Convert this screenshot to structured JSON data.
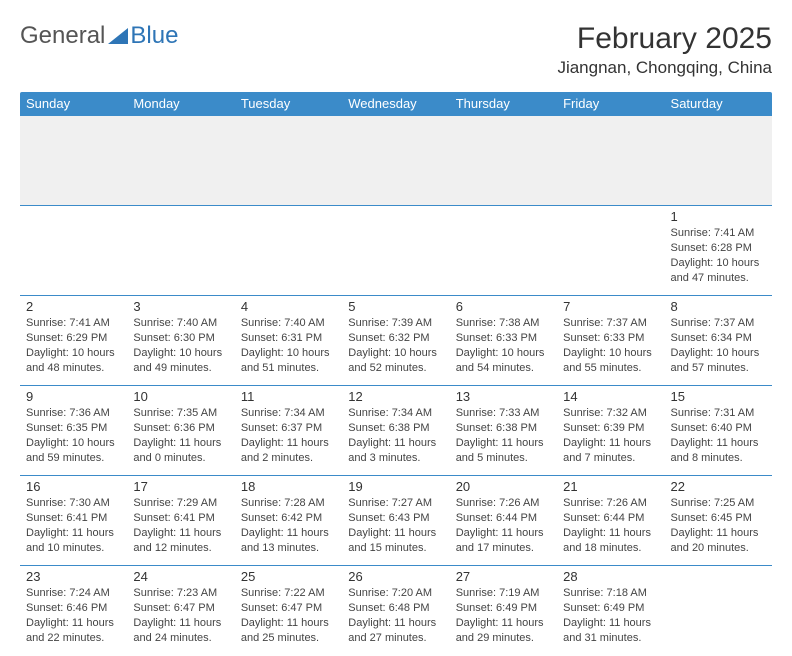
{
  "brand": {
    "general": "General",
    "blue": "Blue"
  },
  "title": "February 2025",
  "location": "Jiangnan, Chongqing, China",
  "colors": {
    "header_bg": "#3b8bc9",
    "header_text": "#ffffff",
    "rule": "#3b8bc9",
    "spacer_bg": "#f0f0f0",
    "text": "#444444",
    "title_text": "#333333",
    "brand_gray": "#555555",
    "brand_blue": "#2e75b6",
    "page_bg": "#ffffff"
  },
  "day_names": [
    "Sunday",
    "Monday",
    "Tuesday",
    "Wednesday",
    "Thursday",
    "Friday",
    "Saturday"
  ],
  "weeks": [
    [
      null,
      null,
      null,
      null,
      null,
      null,
      {
        "n": "1",
        "sunrise": "7:41 AM",
        "sunset": "6:28 PM",
        "daylight": "10 hours and 47 minutes."
      }
    ],
    [
      {
        "n": "2",
        "sunrise": "7:41 AM",
        "sunset": "6:29 PM",
        "daylight": "10 hours and 48 minutes."
      },
      {
        "n": "3",
        "sunrise": "7:40 AM",
        "sunset": "6:30 PM",
        "daylight": "10 hours and 49 minutes."
      },
      {
        "n": "4",
        "sunrise": "7:40 AM",
        "sunset": "6:31 PM",
        "daylight": "10 hours and 51 minutes."
      },
      {
        "n": "5",
        "sunrise": "7:39 AM",
        "sunset": "6:32 PM",
        "daylight": "10 hours and 52 minutes."
      },
      {
        "n": "6",
        "sunrise": "7:38 AM",
        "sunset": "6:33 PM",
        "daylight": "10 hours and 54 minutes."
      },
      {
        "n": "7",
        "sunrise": "7:37 AM",
        "sunset": "6:33 PM",
        "daylight": "10 hours and 55 minutes."
      },
      {
        "n": "8",
        "sunrise": "7:37 AM",
        "sunset": "6:34 PM",
        "daylight": "10 hours and 57 minutes."
      }
    ],
    [
      {
        "n": "9",
        "sunrise": "7:36 AM",
        "sunset": "6:35 PM",
        "daylight": "10 hours and 59 minutes."
      },
      {
        "n": "10",
        "sunrise": "7:35 AM",
        "sunset": "6:36 PM",
        "daylight": "11 hours and 0 minutes."
      },
      {
        "n": "11",
        "sunrise": "7:34 AM",
        "sunset": "6:37 PM",
        "daylight": "11 hours and 2 minutes."
      },
      {
        "n": "12",
        "sunrise": "7:34 AM",
        "sunset": "6:38 PM",
        "daylight": "11 hours and 3 minutes."
      },
      {
        "n": "13",
        "sunrise": "7:33 AM",
        "sunset": "6:38 PM",
        "daylight": "11 hours and 5 minutes."
      },
      {
        "n": "14",
        "sunrise": "7:32 AM",
        "sunset": "6:39 PM",
        "daylight": "11 hours and 7 minutes."
      },
      {
        "n": "15",
        "sunrise": "7:31 AM",
        "sunset": "6:40 PM",
        "daylight": "11 hours and 8 minutes."
      }
    ],
    [
      {
        "n": "16",
        "sunrise": "7:30 AM",
        "sunset": "6:41 PM",
        "daylight": "11 hours and 10 minutes."
      },
      {
        "n": "17",
        "sunrise": "7:29 AM",
        "sunset": "6:41 PM",
        "daylight": "11 hours and 12 minutes."
      },
      {
        "n": "18",
        "sunrise": "7:28 AM",
        "sunset": "6:42 PM",
        "daylight": "11 hours and 13 minutes."
      },
      {
        "n": "19",
        "sunrise": "7:27 AM",
        "sunset": "6:43 PM",
        "daylight": "11 hours and 15 minutes."
      },
      {
        "n": "20",
        "sunrise": "7:26 AM",
        "sunset": "6:44 PM",
        "daylight": "11 hours and 17 minutes."
      },
      {
        "n": "21",
        "sunrise": "7:26 AM",
        "sunset": "6:44 PM",
        "daylight": "11 hours and 18 minutes."
      },
      {
        "n": "22",
        "sunrise": "7:25 AM",
        "sunset": "6:45 PM",
        "daylight": "11 hours and 20 minutes."
      }
    ],
    [
      {
        "n": "23",
        "sunrise": "7:24 AM",
        "sunset": "6:46 PM",
        "daylight": "11 hours and 22 minutes."
      },
      {
        "n": "24",
        "sunrise": "7:23 AM",
        "sunset": "6:47 PM",
        "daylight": "11 hours and 24 minutes."
      },
      {
        "n": "25",
        "sunrise": "7:22 AM",
        "sunset": "6:47 PM",
        "daylight": "11 hours and 25 minutes."
      },
      {
        "n": "26",
        "sunrise": "7:20 AM",
        "sunset": "6:48 PM",
        "daylight": "11 hours and 27 minutes."
      },
      {
        "n": "27",
        "sunrise": "7:19 AM",
        "sunset": "6:49 PM",
        "daylight": "11 hours and 29 minutes."
      },
      {
        "n": "28",
        "sunrise": "7:18 AM",
        "sunset": "6:49 PM",
        "daylight": "11 hours and 31 minutes."
      },
      null
    ]
  ],
  "labels": {
    "sunrise": "Sunrise:",
    "sunset": "Sunset:",
    "daylight": "Daylight:"
  }
}
